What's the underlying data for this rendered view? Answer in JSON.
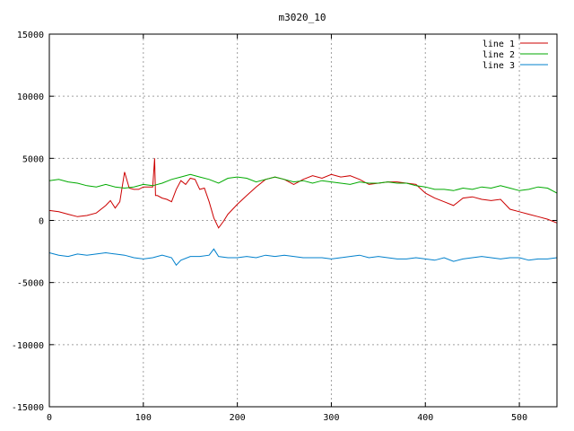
{
  "chart_data": {
    "type": "line",
    "title": "m3020_10",
    "xlabel": "",
    "ylabel": "",
    "xlim": [
      0,
      540
    ],
    "ylim": [
      -15000,
      15000
    ],
    "xticks": [
      0,
      100,
      200,
      300,
      400,
      500
    ],
    "yticks": [
      -15000,
      -10000,
      -5000,
      0,
      5000,
      10000,
      15000
    ],
    "grid": true,
    "legend_position": "top-right",
    "series": [
      {
        "name": "line 1",
        "color": "#cc0000",
        "x": [
          0,
          10,
          20,
          30,
          40,
          50,
          60,
          65,
          70,
          75,
          80,
          85,
          90,
          95,
          100,
          105,
          110,
          112,
          113,
          115,
          120,
          125,
          130,
          135,
          140,
          145,
          150,
          155,
          160,
          165,
          170,
          175,
          180,
          185,
          190,
          200,
          210,
          220,
          230,
          240,
          250,
          260,
          270,
          280,
          290,
          300,
          310,
          320,
          330,
          340,
          350,
          360,
          370,
          380,
          390,
          400,
          410,
          420,
          430,
          440,
          450,
          460,
          470,
          480,
          490,
          500,
          510,
          520,
          530,
          540
        ],
        "y": [
          800,
          700,
          500,
          300,
          400,
          600,
          1200,
          1600,
          1000,
          1500,
          3900,
          2600,
          2500,
          2500,
          2700,
          2700,
          2700,
          5000,
          2000,
          2000,
          1800,
          1700,
          1500,
          2500,
          3200,
          2900,
          3400,
          3300,
          2500,
          2600,
          1500,
          200,
          -600,
          -100,
          500,
          1300,
          2000,
          2700,
          3300,
          3500,
          3300,
          2900,
          3300,
          3600,
          3400,
          3700,
          3500,
          3600,
          3300,
          2900,
          3000,
          3100,
          3100,
          3000,
          2900,
          2200,
          1800,
          1500,
          1200,
          1800,
          1900,
          1700,
          1600,
          1700,
          900,
          700,
          500,
          300,
          100,
          -200
        ]
      },
      {
        "name": "line 2",
        "color": "#00aa00",
        "x": [
          0,
          10,
          20,
          30,
          40,
          50,
          60,
          70,
          80,
          90,
          100,
          110,
          120,
          130,
          140,
          150,
          160,
          170,
          180,
          190,
          200,
          210,
          220,
          230,
          240,
          250,
          260,
          270,
          280,
          290,
          300,
          310,
          320,
          330,
          340,
          350,
          360,
          370,
          380,
          390,
          400,
          410,
          420,
          430,
          440,
          450,
          460,
          470,
          480,
          490,
          500,
          510,
          520,
          530,
          540
        ],
        "y": [
          3200,
          3300,
          3100,
          3000,
          2800,
          2700,
          2900,
          2700,
          2600,
          2700,
          2900,
          2800,
          3000,
          3300,
          3500,
          3700,
          3500,
          3300,
          3000,
          3400,
          3500,
          3400,
          3100,
          3300,
          3500,
          3300,
          3100,
          3200,
          3000,
          3200,
          3100,
          3000,
          2900,
          3100,
          3000,
          3000,
          3100,
          3000,
          3000,
          2800,
          2700,
          2500,
          2500,
          2400,
          2600,
          2500,
          2700,
          2600,
          2800,
          2600,
          2400,
          2500,
          2700,
          2600,
          2200
        ]
      },
      {
        "name": "line 3",
        "color": "#0080cc",
        "x": [
          0,
          10,
          20,
          30,
          40,
          50,
          60,
          70,
          80,
          90,
          100,
          110,
          120,
          130,
          135,
          140,
          150,
          160,
          170,
          175,
          180,
          190,
          200,
          210,
          220,
          230,
          240,
          250,
          260,
          270,
          280,
          290,
          300,
          310,
          320,
          330,
          340,
          350,
          360,
          370,
          380,
          390,
          400,
          410,
          420,
          430,
          440,
          450,
          460,
          470,
          480,
          490,
          500,
          510,
          520,
          530,
          540
        ],
        "y": [
          -2600,
          -2800,
          -2900,
          -2700,
          -2800,
          -2700,
          -2600,
          -2700,
          -2800,
          -3000,
          -3100,
          -3000,
          -2800,
          -3000,
          -3600,
          -3200,
          -2900,
          -2900,
          -2800,
          -2300,
          -2900,
          -3000,
          -3000,
          -2900,
          -3000,
          -2800,
          -2900,
          -2800,
          -2900,
          -3000,
          -3000,
          -3000,
          -3100,
          -3000,
          -2900,
          -2800,
          -3000,
          -2900,
          -3000,
          -3100,
          -3100,
          -3000,
          -3100,
          -3200,
          -3000,
          -3300,
          -3100,
          -3000,
          -2900,
          -3000,
          -3100,
          -3000,
          -3000,
          -3200,
          -3100,
          -3100,
          -3000
        ]
      }
    ]
  }
}
